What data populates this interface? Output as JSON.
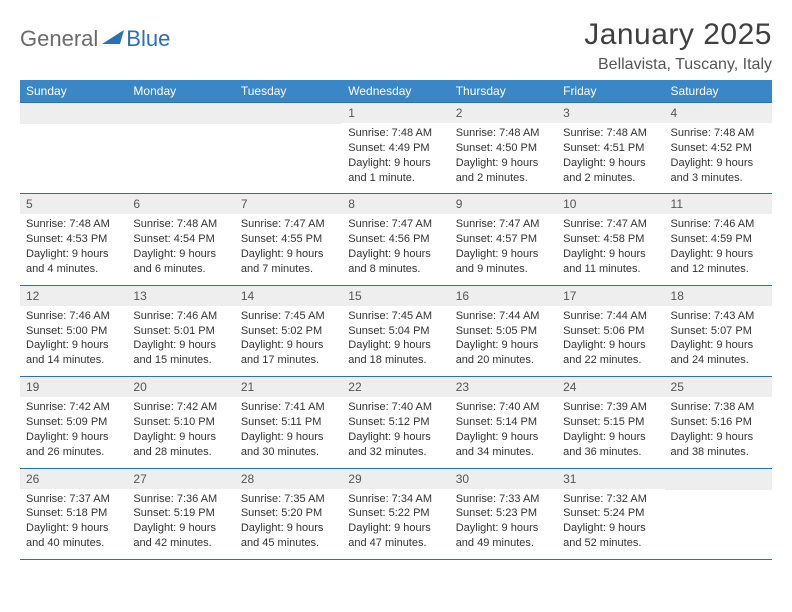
{
  "brand": {
    "word1": "General",
    "word2": "Blue"
  },
  "title": "January 2025",
  "location": "Bellavista, Tuscany, Italy",
  "colors": {
    "header_bg": "#3a87c8",
    "header_text": "#ffffff",
    "rule": "#2c6fb3",
    "daynum_bg": "#eeeeee",
    "logo_gray": "#6b6b6b",
    "logo_blue": "#2c6fb3"
  },
  "dow": [
    "Sunday",
    "Monday",
    "Tuesday",
    "Wednesday",
    "Thursday",
    "Friday",
    "Saturday"
  ],
  "weeks": [
    [
      null,
      null,
      null,
      {
        "n": "1",
        "sr": "7:48 AM",
        "ss": "4:49 PM",
        "dl": "9 hours and 1 minute."
      },
      {
        "n": "2",
        "sr": "7:48 AM",
        "ss": "4:50 PM",
        "dl": "9 hours and 2 minutes."
      },
      {
        "n": "3",
        "sr": "7:48 AM",
        "ss": "4:51 PM",
        "dl": "9 hours and 2 minutes."
      },
      {
        "n": "4",
        "sr": "7:48 AM",
        "ss": "4:52 PM",
        "dl": "9 hours and 3 minutes."
      }
    ],
    [
      {
        "n": "5",
        "sr": "7:48 AM",
        "ss": "4:53 PM",
        "dl": "9 hours and 4 minutes."
      },
      {
        "n": "6",
        "sr": "7:48 AM",
        "ss": "4:54 PM",
        "dl": "9 hours and 6 minutes."
      },
      {
        "n": "7",
        "sr": "7:47 AM",
        "ss": "4:55 PM",
        "dl": "9 hours and 7 minutes."
      },
      {
        "n": "8",
        "sr": "7:47 AM",
        "ss": "4:56 PM",
        "dl": "9 hours and 8 minutes."
      },
      {
        "n": "9",
        "sr": "7:47 AM",
        "ss": "4:57 PM",
        "dl": "9 hours and 9 minutes."
      },
      {
        "n": "10",
        "sr": "7:47 AM",
        "ss": "4:58 PM",
        "dl": "9 hours and 11 minutes."
      },
      {
        "n": "11",
        "sr": "7:46 AM",
        "ss": "4:59 PM",
        "dl": "9 hours and 12 minutes."
      }
    ],
    [
      {
        "n": "12",
        "sr": "7:46 AM",
        "ss": "5:00 PM",
        "dl": "9 hours and 14 minutes."
      },
      {
        "n": "13",
        "sr": "7:46 AM",
        "ss": "5:01 PM",
        "dl": "9 hours and 15 minutes."
      },
      {
        "n": "14",
        "sr": "7:45 AM",
        "ss": "5:02 PM",
        "dl": "9 hours and 17 minutes."
      },
      {
        "n": "15",
        "sr": "7:45 AM",
        "ss": "5:04 PM",
        "dl": "9 hours and 18 minutes."
      },
      {
        "n": "16",
        "sr": "7:44 AM",
        "ss": "5:05 PM",
        "dl": "9 hours and 20 minutes."
      },
      {
        "n": "17",
        "sr": "7:44 AM",
        "ss": "5:06 PM",
        "dl": "9 hours and 22 minutes."
      },
      {
        "n": "18",
        "sr": "7:43 AM",
        "ss": "5:07 PM",
        "dl": "9 hours and 24 minutes."
      }
    ],
    [
      {
        "n": "19",
        "sr": "7:42 AM",
        "ss": "5:09 PM",
        "dl": "9 hours and 26 minutes."
      },
      {
        "n": "20",
        "sr": "7:42 AM",
        "ss": "5:10 PM",
        "dl": "9 hours and 28 minutes."
      },
      {
        "n": "21",
        "sr": "7:41 AM",
        "ss": "5:11 PM",
        "dl": "9 hours and 30 minutes."
      },
      {
        "n": "22",
        "sr": "7:40 AM",
        "ss": "5:12 PM",
        "dl": "9 hours and 32 minutes."
      },
      {
        "n": "23",
        "sr": "7:40 AM",
        "ss": "5:14 PM",
        "dl": "9 hours and 34 minutes."
      },
      {
        "n": "24",
        "sr": "7:39 AM",
        "ss": "5:15 PM",
        "dl": "9 hours and 36 minutes."
      },
      {
        "n": "25",
        "sr": "7:38 AM",
        "ss": "5:16 PM",
        "dl": "9 hours and 38 minutes."
      }
    ],
    [
      {
        "n": "26",
        "sr": "7:37 AM",
        "ss": "5:18 PM",
        "dl": "9 hours and 40 minutes."
      },
      {
        "n": "27",
        "sr": "7:36 AM",
        "ss": "5:19 PM",
        "dl": "9 hours and 42 minutes."
      },
      {
        "n": "28",
        "sr": "7:35 AM",
        "ss": "5:20 PM",
        "dl": "9 hours and 45 minutes."
      },
      {
        "n": "29",
        "sr": "7:34 AM",
        "ss": "5:22 PM",
        "dl": "9 hours and 47 minutes."
      },
      {
        "n": "30",
        "sr": "7:33 AM",
        "ss": "5:23 PM",
        "dl": "9 hours and 49 minutes."
      },
      {
        "n": "31",
        "sr": "7:32 AM",
        "ss": "5:24 PM",
        "dl": "9 hours and 52 minutes."
      },
      null
    ]
  ],
  "labels": {
    "sunrise": "Sunrise:",
    "sunset": "Sunset:",
    "daylight": "Daylight:"
  }
}
